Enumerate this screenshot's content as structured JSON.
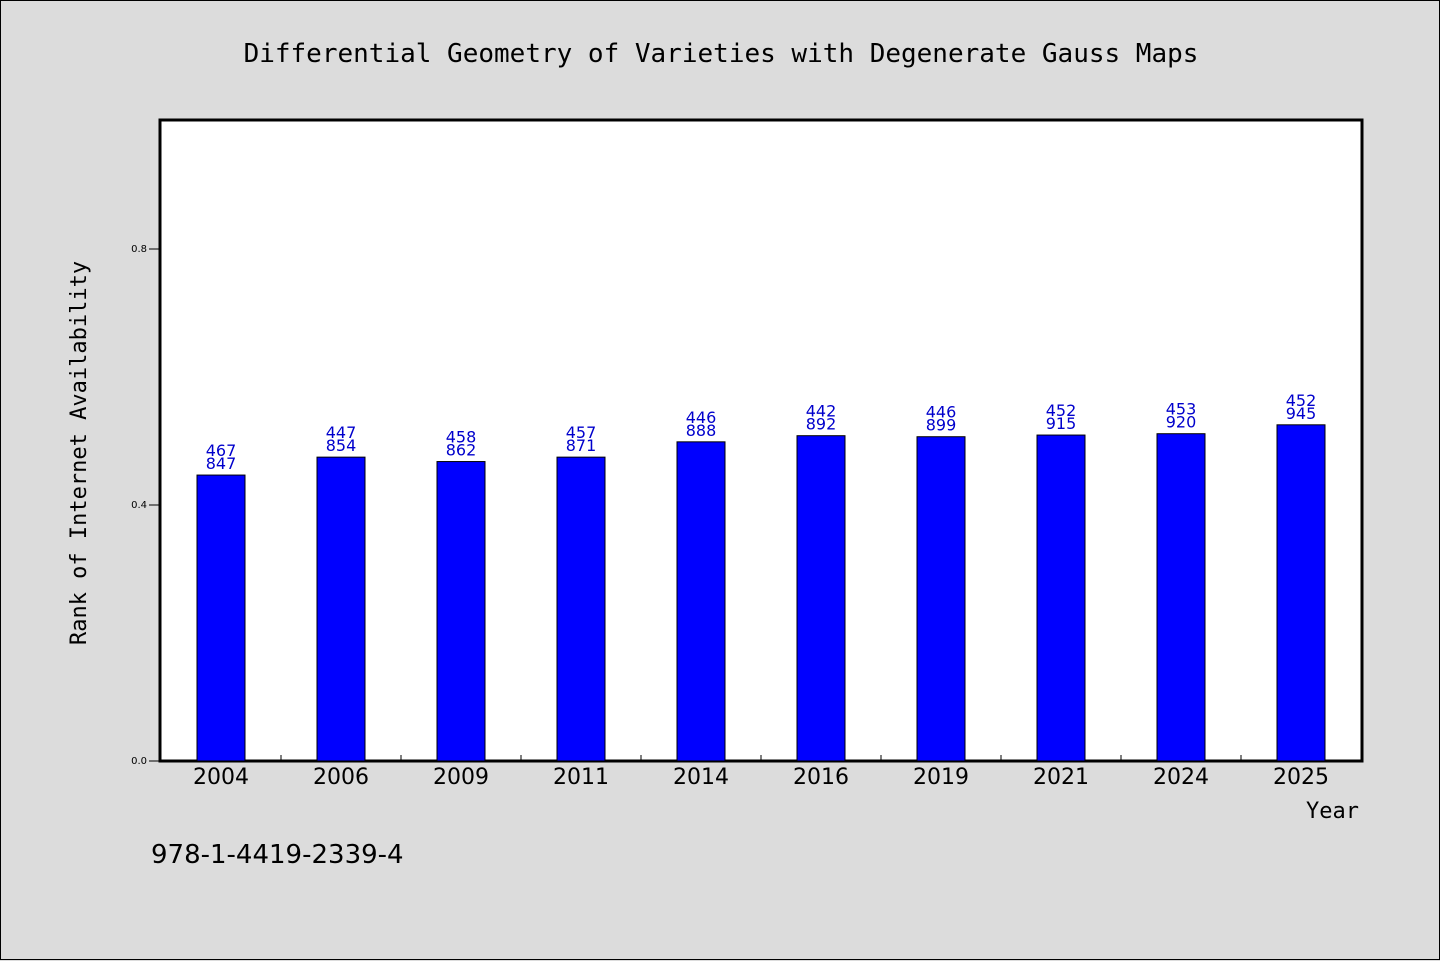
{
  "chart_data": {
    "type": "bar",
    "title": "Differential Geometry of Varieties with Degenerate Gauss Maps",
    "xlabel": "Year",
    "ylabel": "Rank of Internet Availability",
    "categories": [
      "2004",
      "2006",
      "2009",
      "2011",
      "2014",
      "2016",
      "2019",
      "2021",
      "2024",
      "2025"
    ],
    "values": [
      0.4467847,
      0.4747854,
      0.4678862,
      0.4747871,
      0.4986888,
      0.5082892,
      0.5066899,
      0.5092915,
      0.511392,
      0.5252945
    ],
    "value_labels": [
      [
        "467",
        "847"
      ],
      [
        "447",
        "854"
      ],
      [
        "458",
        "862"
      ],
      [
        "457",
        "871"
      ],
      [
        "446",
        "888"
      ],
      [
        "442",
        "892"
      ],
      [
        "446",
        "899"
      ],
      [
        "452",
        "915"
      ],
      [
        "453",
        "920"
      ],
      [
        "452",
        "945"
      ]
    ],
    "yticks": [
      0.0,
      0.4,
      0.8
    ],
    "ytick_labels": [
      "0.0",
      "0.4",
      "0.8"
    ],
    "ylim": [
      0,
      1.0
    ],
    "grid": false,
    "bar_color": "#0000ff",
    "label_color": "#0000cc"
  },
  "annotation": "978-1-4419-2339-4"
}
